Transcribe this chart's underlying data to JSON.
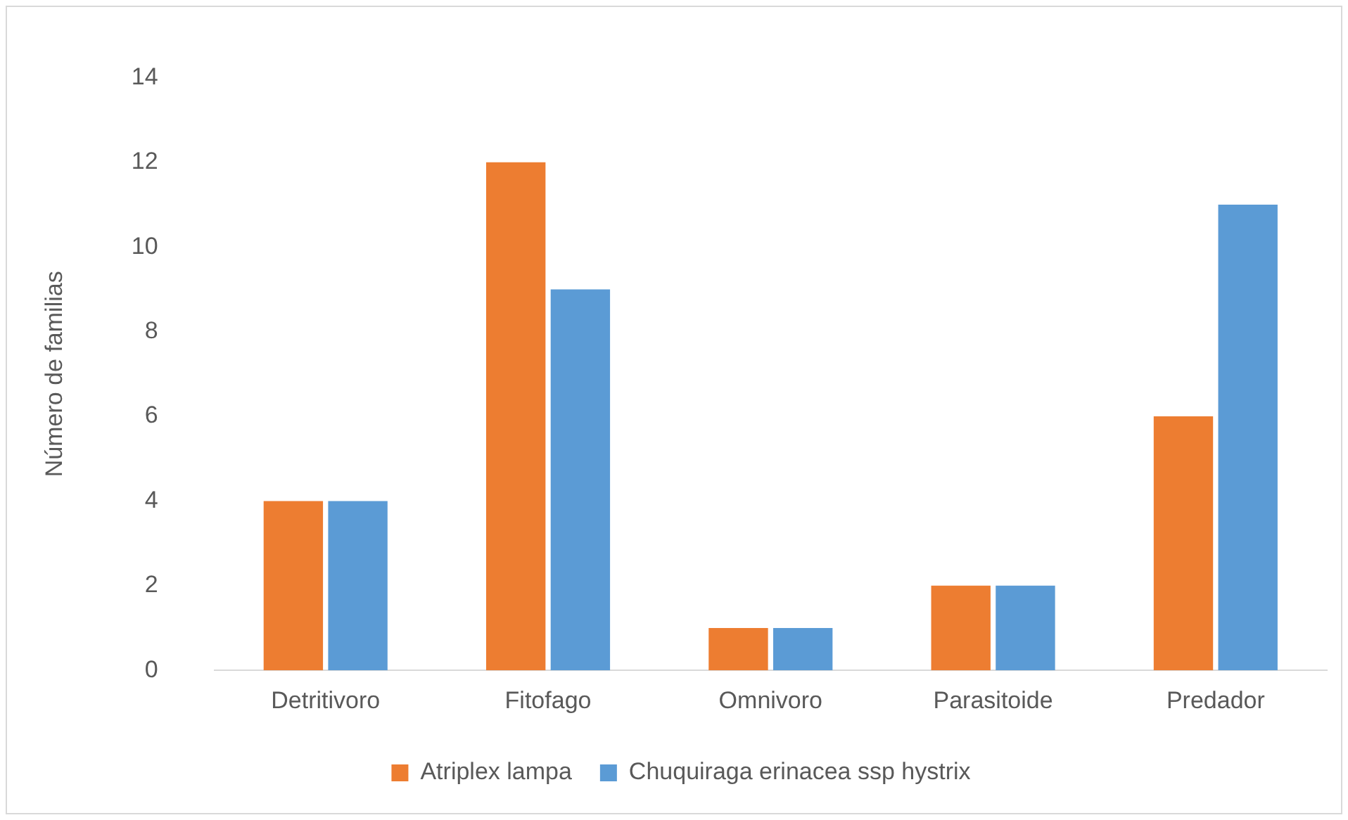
{
  "chart_data": {
    "type": "bar",
    "ylabel": "Número de familias",
    "categories": [
      "Detritivoro",
      "Fitofago",
      "Omnivoro",
      "Parasitoide",
      "Predador"
    ],
    "series": [
      {
        "name": "Atriplex lampa",
        "color": "#ed7d31",
        "values": [
          4,
          12,
          1,
          2,
          6
        ]
      },
      {
        "name": "Chuquiraga erinacea ssp hystrix",
        "color": "#5b9bd5",
        "values": [
          4,
          9,
          1,
          2,
          11
        ]
      }
    ],
    "ylim": [
      0,
      14
    ],
    "yticks": [
      0,
      2,
      4,
      6,
      8,
      10,
      12,
      14
    ],
    "grid": false,
    "legend": "bottom"
  }
}
